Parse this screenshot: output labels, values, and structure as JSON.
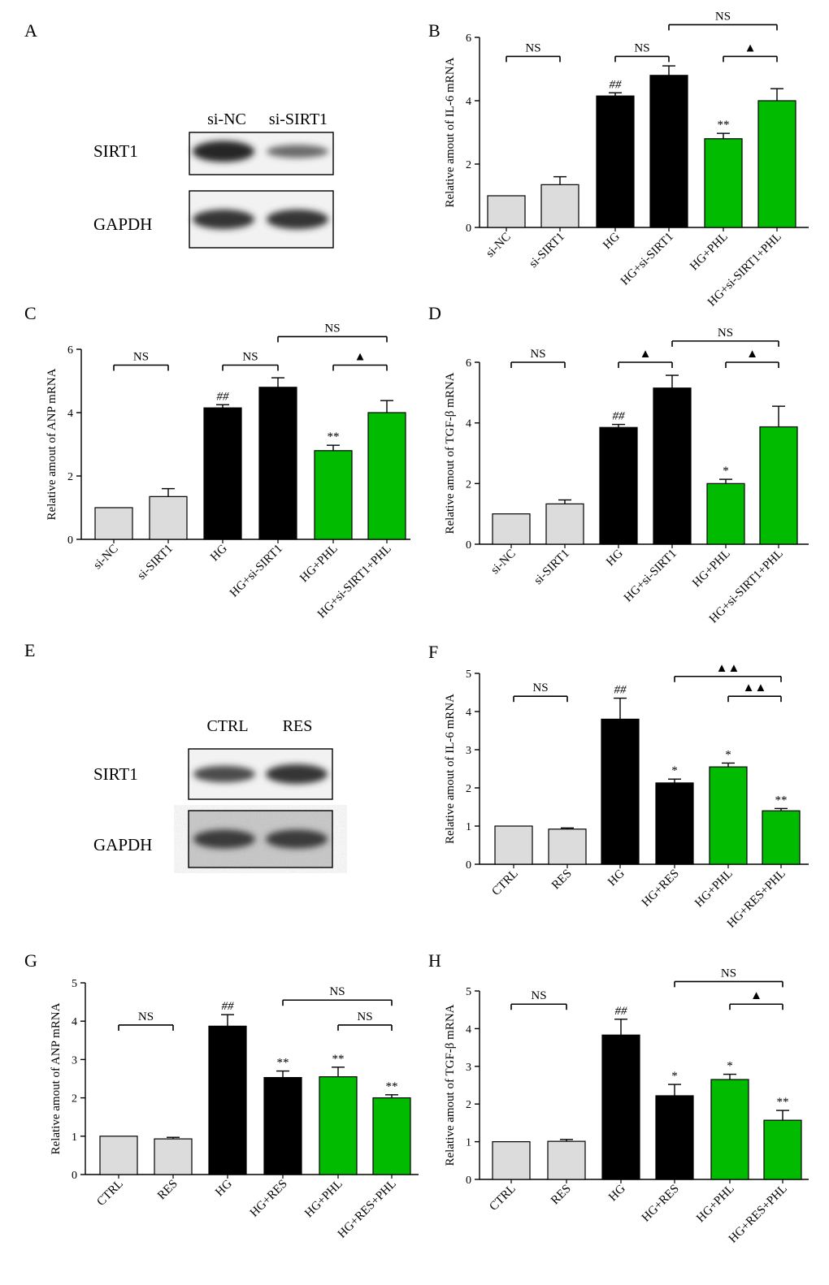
{
  "colors": {
    "gray": "#dcdcdc",
    "black": "#000000",
    "green": "#00bb00",
    "axis": "#000000"
  },
  "blots": [
    {
      "id": "A",
      "letter": "A",
      "lanes": [
        "si-NC",
        "si-SIRT1"
      ],
      "rows": [
        "SIRT1",
        "GAPDH"
      ],
      "band_intensity": [
        [
          1.0,
          0.45
        ],
        [
          0.9,
          0.9
        ]
      ]
    },
    {
      "id": "E",
      "letter": "E",
      "lanes": [
        "CTRL",
        "RES"
      ],
      "rows": [
        "SIRT1",
        "GAPDH"
      ],
      "band_intensity": [
        [
          0.7,
          0.9
        ],
        [
          0.85,
          0.85
        ]
      ]
    }
  ],
  "chart_data": [
    {
      "id": "B",
      "letter": "B",
      "type": "bar",
      "ylabel": "Relative amout of IL-6 mRNA",
      "ylim": [
        0,
        6
      ],
      "yticks": [
        0,
        2,
        4,
        6
      ],
      "categories": [
        "si-NC",
        "si-SIRT1",
        "HG",
        "HG+si-SIRT1",
        "HG+PHL",
        "HG+si-SIRT1+PHL"
      ],
      "values": [
        1.0,
        1.35,
        4.15,
        4.8,
        2.8,
        4.0
      ],
      "errors": [
        0,
        0.25,
        0.1,
        0.3,
        0.17,
        0.38
      ],
      "colors": [
        "gray",
        "gray",
        "black",
        "black",
        "green",
        "green"
      ],
      "marks": [
        "",
        "",
        "##",
        "",
        "**",
        ""
      ],
      "brackets": [
        {
          "from": 0,
          "to": 1,
          "y": 5.4,
          "label": "NS"
        },
        {
          "from": 2,
          "to": 3,
          "y": 5.4,
          "label": "NS"
        },
        {
          "from": 4,
          "to": 5,
          "y": 5.4,
          "label": "▲"
        },
        {
          "from": 3,
          "to": 5,
          "y": 6.4,
          "label": "NS"
        }
      ]
    },
    {
      "id": "C",
      "letter": "C",
      "type": "bar",
      "ylabel": "Relative amout of ANP mRNA",
      "ylim": [
        0,
        6
      ],
      "yticks": [
        0,
        2,
        4,
        6
      ],
      "categories": [
        "si-NC",
        "si-SIRT1",
        "HG",
        "HG+si-SIRT1",
        "HG+PHL",
        "HG+si-SIRT1+PHL"
      ],
      "values": [
        1.0,
        1.35,
        4.15,
        4.8,
        2.8,
        4.0
      ],
      "errors": [
        0,
        0.25,
        0.1,
        0.3,
        0.17,
        0.38
      ],
      "colors": [
        "gray",
        "gray",
        "black",
        "black",
        "green",
        "green"
      ],
      "marks": [
        "",
        "",
        "##",
        "",
        "**",
        ""
      ],
      "brackets": [
        {
          "from": 0,
          "to": 1,
          "y": 5.5,
          "label": "NS"
        },
        {
          "from": 2,
          "to": 3,
          "y": 5.5,
          "label": "NS"
        },
        {
          "from": 4,
          "to": 5,
          "y": 5.5,
          "label": "▲"
        },
        {
          "from": 3,
          "to": 5,
          "y": 6.4,
          "label": "NS"
        }
      ]
    },
    {
      "id": "D",
      "letter": "D",
      "type": "bar",
      "ylabel": "Relative amout of TGF-β mRNA",
      "ylim": [
        0,
        6
      ],
      "yticks": [
        0,
        2,
        4,
        6
      ],
      "categories": [
        "si-NC",
        "si-SIRT1",
        "HG",
        "HG+si-SIRT1",
        "HG+PHL",
        "HG+si-SIRT1+PHL"
      ],
      "values": [
        1.0,
        1.33,
        3.85,
        5.15,
        2.0,
        3.87
      ],
      "errors": [
        0,
        0.13,
        0.1,
        0.42,
        0.14,
        0.68
      ],
      "colors": [
        "gray",
        "gray",
        "black",
        "black",
        "green",
        "green"
      ],
      "marks": [
        "",
        "",
        "##",
        "",
        "*",
        ""
      ],
      "brackets": [
        {
          "from": 0,
          "to": 1,
          "y": 6.0,
          "label": "NS"
        },
        {
          "from": 2,
          "to": 3,
          "y": 6.0,
          "label": "▲"
        },
        {
          "from": 4,
          "to": 5,
          "y": 6.0,
          "label": "▲"
        },
        {
          "from": 3,
          "to": 5,
          "y": 6.7,
          "label": "NS"
        }
      ]
    },
    {
      "id": "F",
      "letter": "F",
      "type": "bar",
      "ylabel": "Relative amout of IL-6 mRNA",
      "ylim": [
        0,
        5
      ],
      "yticks": [
        0,
        1,
        2,
        3,
        4,
        5
      ],
      "categories": [
        "CTRL",
        "RES",
        "HG",
        "HG+RES",
        "HG+PHL",
        "HG+RES+PHL"
      ],
      "values": [
        1.0,
        0.92,
        3.8,
        2.13,
        2.55,
        1.4
      ],
      "errors": [
        0,
        0.03,
        0.55,
        0.1,
        0.1,
        0.06
      ],
      "colors": [
        "gray",
        "gray",
        "black",
        "black",
        "green",
        "green"
      ],
      "marks": [
        "",
        "",
        "##",
        "*",
        "*",
        "**"
      ],
      "brackets": [
        {
          "from": 0,
          "to": 1,
          "y": 4.4,
          "label": "NS"
        },
        {
          "from": 4,
          "to": 5,
          "y": 4.4,
          "label": "▲▲"
        },
        {
          "from": 3,
          "to": 5,
          "y": 4.92,
          "label": "▲▲"
        }
      ]
    },
    {
      "id": "G",
      "letter": "G",
      "type": "bar",
      "ylabel": "Relative amout of ANP mRNA",
      "ylim": [
        0,
        5
      ],
      "yticks": [
        0,
        1,
        2,
        3,
        4,
        5
      ],
      "categories": [
        "CTRL",
        "RES",
        "HG",
        "HG+RES",
        "HG+PHL",
        "HG+RES+PHL"
      ],
      "values": [
        1.0,
        0.93,
        3.87,
        2.53,
        2.55,
        2.0
      ],
      "errors": [
        0,
        0.04,
        0.3,
        0.17,
        0.25,
        0.08
      ],
      "colors": [
        "gray",
        "gray",
        "black",
        "black",
        "green",
        "green"
      ],
      "marks": [
        "",
        "",
        "##",
        "**",
        "**",
        "**"
      ],
      "brackets": [
        {
          "from": 0,
          "to": 1,
          "y": 3.9,
          "label": "NS"
        },
        {
          "from": 4,
          "to": 5,
          "y": 3.9,
          "label": "NS"
        },
        {
          "from": 3,
          "to": 5,
          "y": 4.55,
          "label": "NS"
        }
      ]
    },
    {
      "id": "H",
      "letter": "H",
      "type": "bar",
      "ylabel": "Relative amout of TGF-β mRNA",
      "ylim": [
        0,
        5
      ],
      "yticks": [
        0,
        1,
        2,
        3,
        4,
        5
      ],
      "categories": [
        "CTRL",
        "RES",
        "HG",
        "HG+RES",
        "HG+PHL",
        "HG+RES+PHL"
      ],
      "values": [
        1.0,
        1.01,
        3.83,
        2.22,
        2.65,
        1.57
      ],
      "errors": [
        0,
        0.05,
        0.42,
        0.3,
        0.14,
        0.26
      ],
      "colors": [
        "gray",
        "gray",
        "black",
        "black",
        "green",
        "green"
      ],
      "marks": [
        "",
        "",
        "##",
        "*",
        "*",
        "**"
      ],
      "brackets": [
        {
          "from": 0,
          "to": 1,
          "y": 4.65,
          "label": "NS"
        },
        {
          "from": 4,
          "to": 5,
          "y": 4.65,
          "label": "▲"
        },
        {
          "from": 3,
          "to": 5,
          "y": 5.25,
          "label": "NS"
        }
      ]
    }
  ]
}
